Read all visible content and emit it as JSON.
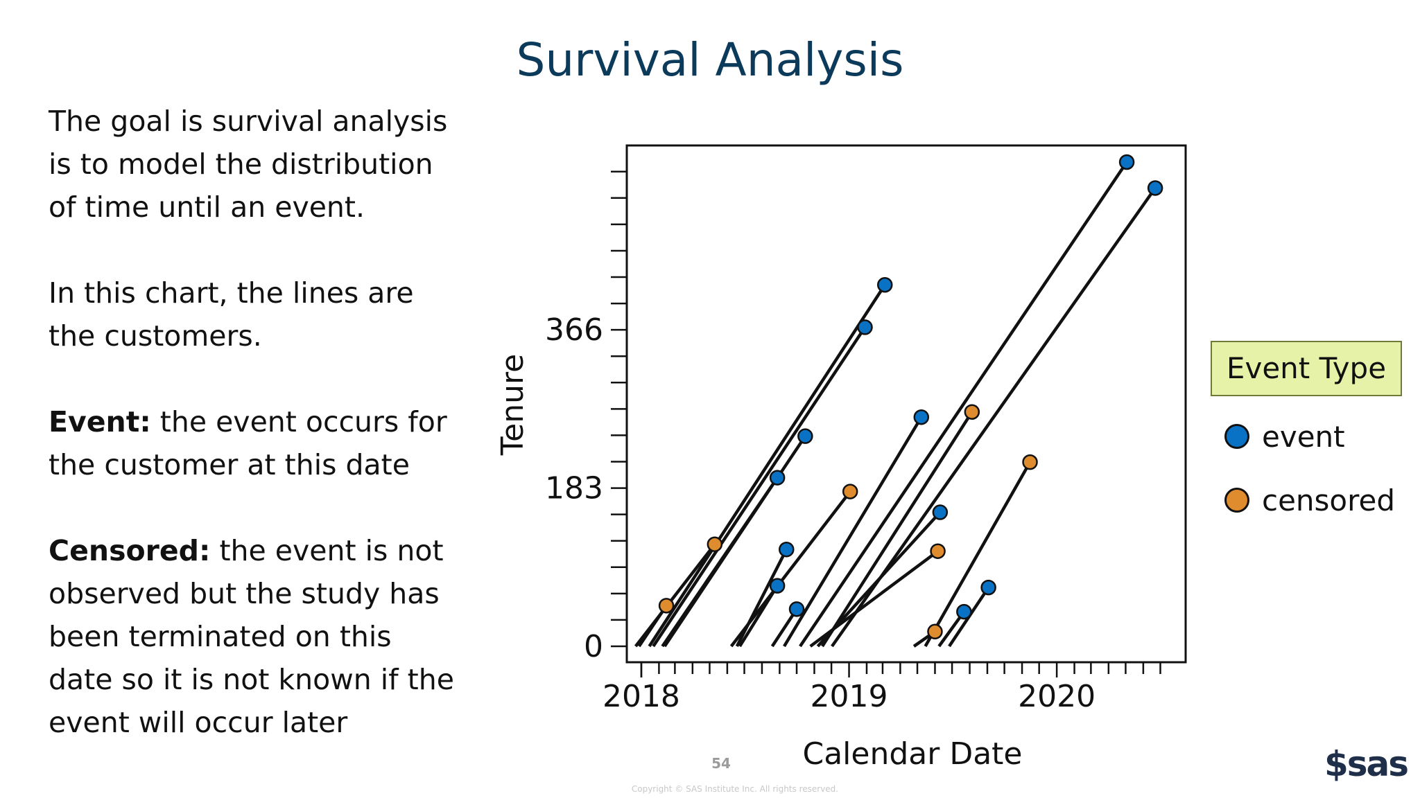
{
  "slide": {
    "title": "Survival Analysis",
    "page_number": "54",
    "copyright": "Copyright © SAS Institute Inc. All rights reserved.",
    "logo_text": "sas",
    "logo_icon": "sas-swirl-icon"
  },
  "left_text": {
    "intro": "The goal is survival analysis is to model the distribution of time until an event.",
    "lines_note": "In this chart, the lines are the customers.",
    "event_label": "Event:",
    "event_text": " the event occurs for the customer at this date",
    "censored_label": "Censored:",
    "censored_text": " the event is not observed but the study has been terminated on this date so it is not known if the event will occur later"
  },
  "chart_data": {
    "type": "scatter",
    "title": "",
    "xlabel": "Calendar Date",
    "ylabel": "Tenure",
    "x_ticks": [
      "2018",
      "2019",
      "2020"
    ],
    "y_ticks": [
      "0",
      "183",
      "366"
    ],
    "xlim": [
      "2017-12-15",
      "2020-07-15"
    ],
    "ylim": [
      0,
      560
    ],
    "grid": false,
    "legend": {
      "title": "Event Type",
      "position": "right",
      "items": [
        {
          "name": "event",
          "color": "#0a72c4"
        },
        {
          "name": "censored",
          "color": "#df8c2e"
        }
      ]
    },
    "series": [
      {
        "name": "event",
        "color": "#0a72c4",
        "points": [
          {
            "start": "2018-02-07",
            "end": "2018-08-28",
            "tenure": 195
          },
          {
            "start": "2018-02-11",
            "end": "2018-10-16",
            "tenure": 243
          },
          {
            "start": "2018-01-22",
            "end": "2019-01-29",
            "tenure": 369
          },
          {
            "start": "2018-01-15",
            "end": "2019-03-05",
            "tenure": 418
          },
          {
            "start": "2018-06-23",
            "end": "2018-08-28",
            "tenure": 70
          },
          {
            "start": "2018-06-18",
            "end": "2018-09-13",
            "tenure": 112
          },
          {
            "start": "2018-08-19",
            "end": "2018-10-01",
            "tenure": 43
          },
          {
            "start": "2018-09-09",
            "end": "2019-05-08",
            "tenure": 265
          },
          {
            "start": "2018-11-07",
            "end": "2019-06-10",
            "tenure": 155
          },
          {
            "start": "2018-10-07",
            "end": "2020-05-03",
            "tenure": 560
          },
          {
            "start": "2018-12-02",
            "end": "2020-06-22",
            "tenure": 530
          },
          {
            "start": "2019-06-08",
            "end": "2019-07-22",
            "tenure": 40
          },
          {
            "start": "2019-06-26",
            "end": "2019-09-03",
            "tenure": 68
          }
        ]
      },
      {
        "name": "censored",
        "color": "#df8c2e",
        "points": [
          {
            "start": "2017-12-28",
            "end": "2018-02-14",
            "tenure": 47
          },
          {
            "start": "2017-12-22",
            "end": "2018-05-10",
            "tenure": 118
          },
          {
            "start": "2018-06-08",
            "end": "2019-01-03",
            "tenure": 179
          },
          {
            "start": "2018-10-25",
            "end": "2019-06-06",
            "tenure": 110
          },
          {
            "start": "2018-11-15",
            "end": "2019-08-05",
            "tenure": 271
          },
          {
            "start": "2019-04-25",
            "end": "2019-06-01",
            "tenure": 17
          },
          {
            "start": "2019-05-15",
            "end": "2019-11-15",
            "tenure": 213
          }
        ]
      }
    ]
  }
}
